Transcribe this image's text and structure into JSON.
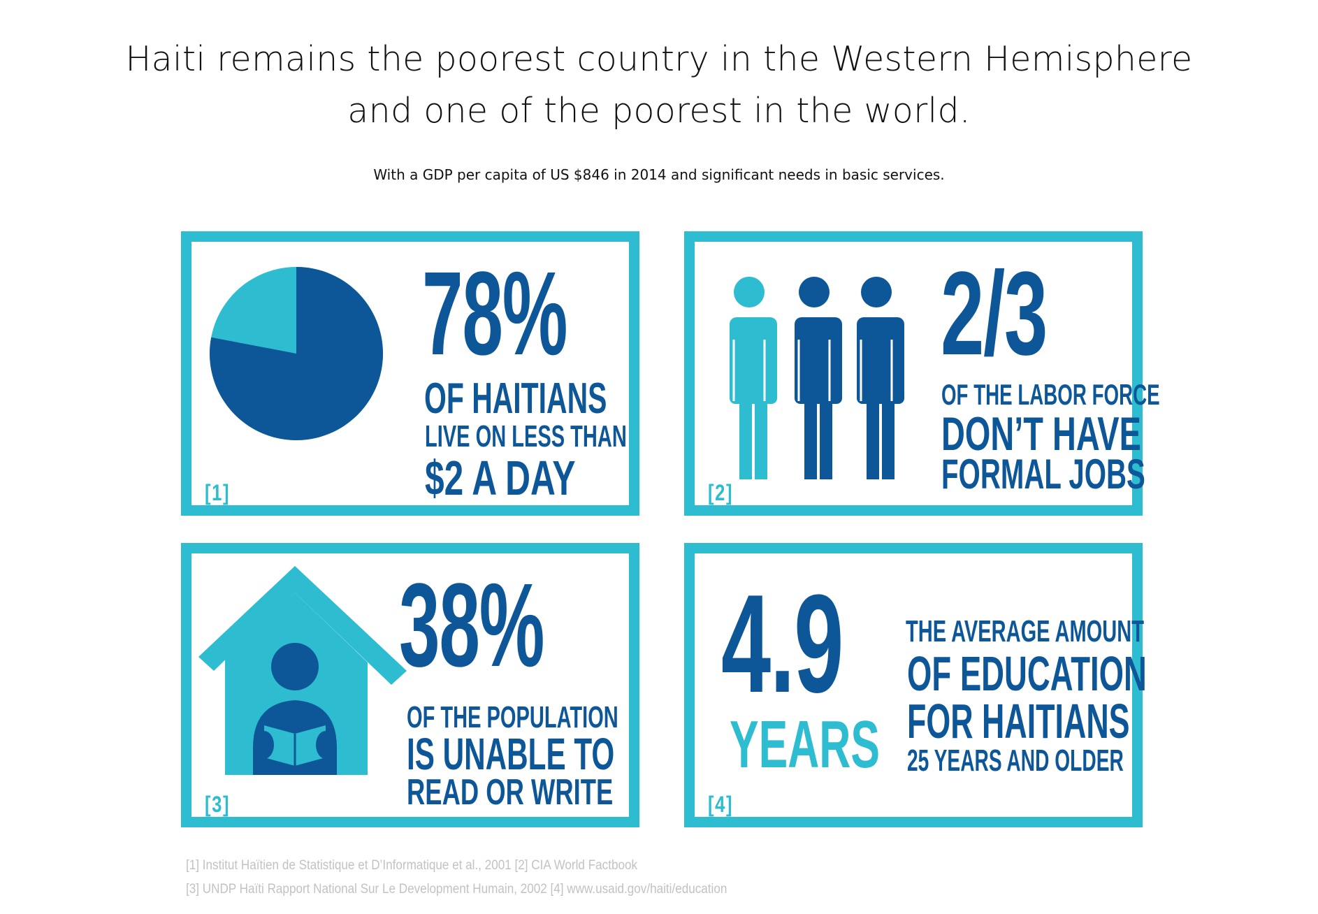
{
  "header": {
    "title_line1": "Haiti remains the poorest country in the Western Hemisphere",
    "title_line2": "and one of the poorest in the world.",
    "subtitle": "With a GDP per capita of US $846 in 2014 and significant needs in basic services."
  },
  "colors": {
    "dark_blue": "#0d5799",
    "light_blue": "#2dbcd0",
    "source_gray": "#c2c2c2"
  },
  "panels": [
    {
      "ref": "[1]",
      "stat": "78%",
      "line1": "OF HAITIANS",
      "line2": "LIVE ON LESS THAN",
      "line3": "$2 A DAY",
      "pie_fraction": 0.78,
      "icon": "pie-chart-icon"
    },
    {
      "ref": "[2]",
      "stat": "2/3",
      "line1": "OF THE LABOR FORCE",
      "line2": "DON’T HAVE",
      "line3": "FORMAL JOBS",
      "people_highlighted": 1,
      "people_total": 3,
      "icon": "people-icon"
    },
    {
      "ref": "[3]",
      "stat": "38%",
      "line1": "OF THE POPULATION",
      "line2": "IS UNABLE TO",
      "line3": "READ OR WRITE",
      "icon": "house-reader-icon"
    },
    {
      "ref": "[4]",
      "stat": "4.9",
      "unit": "YEARS",
      "line1": "THE AVERAGE AMOUNT",
      "line2": "OF EDUCATION",
      "line3": "FOR HAITIANS",
      "line4": "25 YEARS AND OLDER"
    }
  ],
  "sources": {
    "line1": "[1] Institut Haïtien de Statistique et D’Informatique et al., 2001 [2] CIA World Factbook",
    "line2": "[3] UNDP Haïti Rapport National Sur Le Development Humain, 2002 [4] www.usaid.gov/haiti/education"
  }
}
